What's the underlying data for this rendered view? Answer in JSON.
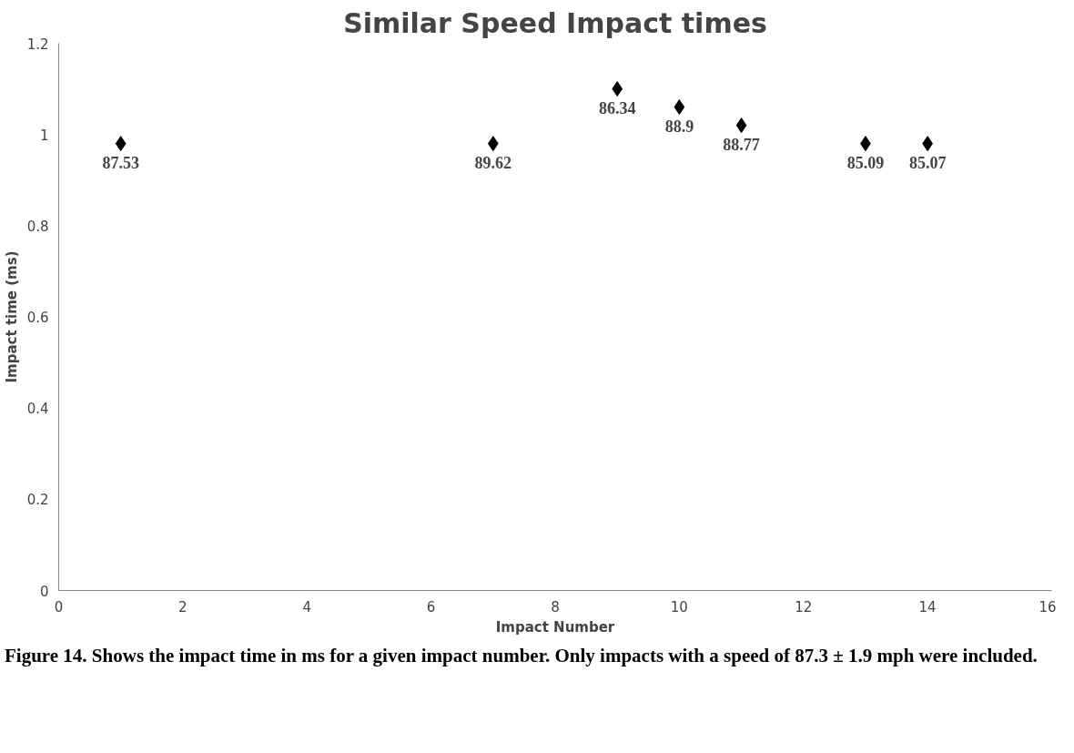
{
  "chart_data": {
    "type": "scatter",
    "title": "Similar Speed Impact times",
    "xlabel": "Impact Number",
    "ylabel": "Impact time (ms)",
    "x": [
      1,
      7,
      9,
      10,
      11,
      13,
      14
    ],
    "values": [
      0.98,
      0.98,
      1.1,
      1.06,
      1.02,
      0.98,
      0.98
    ],
    "color": "#000000",
    "marker": "diamond",
    "xlim": [
      0,
      16
    ],
    "xticks": [
      0,
      2,
      4,
      6,
      8,
      10,
      12,
      14,
      16
    ],
    "ylim": [
      0,
      1.2
    ],
    "yticks": [
      0,
      0.2,
      0.4,
      0.6,
      0.8,
      1,
      1.2
    ],
    "annotations": [
      {
        "text": "87.53",
        "x": 1,
        "y": 0.98
      },
      {
        "text": "89.62",
        "x": 7,
        "y": 0.98
      },
      {
        "text": "86.34",
        "x": 9,
        "y": 1.1
      },
      {
        "text": "88.9",
        "x": 10,
        "y": 1.06
      },
      {
        "text": "88.77",
        "x": 11,
        "y": 1.02
      },
      {
        "text": "85.09",
        "x": 13,
        "y": 0.98
      },
      {
        "text": "85.07",
        "x": 14,
        "y": 0.98
      },
      "Figure 14. Shows the impact time in ms for a given impact number. Only impacts with a speed of 87.3 ± 1.9 mph were included."
    ]
  }
}
